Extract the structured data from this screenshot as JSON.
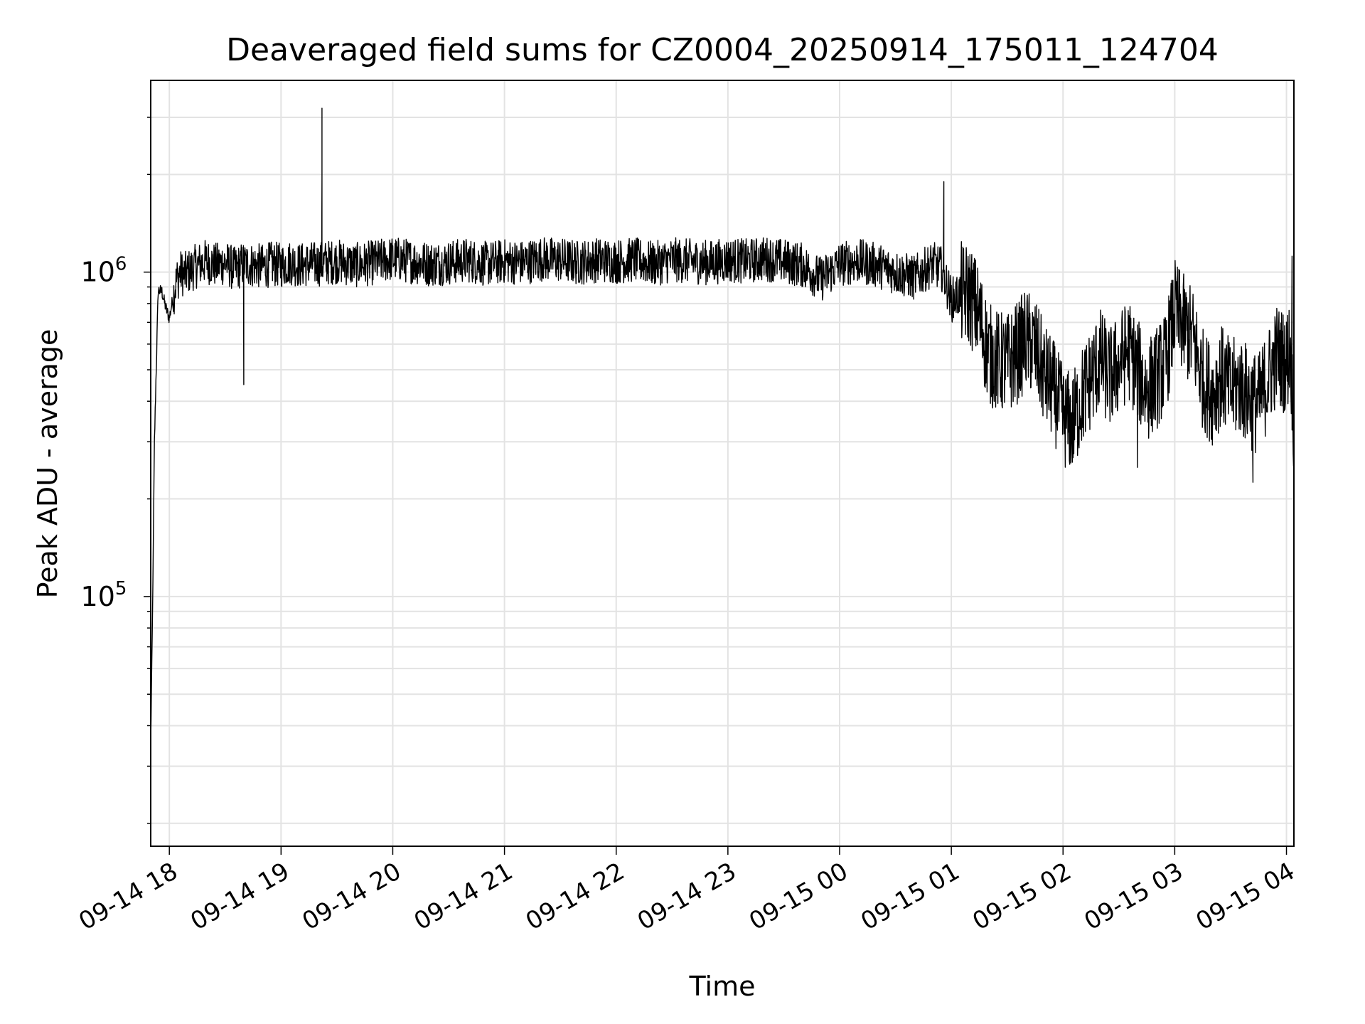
{
  "chart_data": {
    "type": "line",
    "title": "Deaveraged field sums for CZ0004_20250914_175011_124704",
    "xlabel": "Time",
    "ylabel": "Peak ADU - average",
    "yscale": "log",
    "ylim": [
      17000,
      3900000
    ],
    "xlim": [
      "2025-09-14 17:50",
      "2025-09-15 04:04"
    ],
    "grid": true,
    "x_ticks": [
      {
        "at": "2025-09-14 18:00",
        "label": "09-14 18"
      },
      {
        "at": "2025-09-14 19:00",
        "label": "09-14 19"
      },
      {
        "at": "2025-09-14 20:00",
        "label": "09-14 20"
      },
      {
        "at": "2025-09-14 21:00",
        "label": "09-14 21"
      },
      {
        "at": "2025-09-14 22:00",
        "label": "09-14 22"
      },
      {
        "at": "2025-09-14 23:00",
        "label": "09-14 23"
      },
      {
        "at": "2025-09-15 00:00",
        "label": "09-15 00"
      },
      {
        "at": "2025-09-15 01:00",
        "label": "09-15 01"
      },
      {
        "at": "2025-09-15 02:00",
        "label": "09-15 02"
      },
      {
        "at": "2025-09-15 03:00",
        "label": "09-15 03"
      },
      {
        "at": "2025-09-15 04:00",
        "label": "09-15 04"
      }
    ],
    "y_ticks": [
      {
        "value": 100000,
        "base": "10",
        "exp": "5"
      },
      {
        "value": 1000000,
        "base": "10",
        "exp": "6"
      }
    ],
    "line_color": "#000000",
    "series": [
      {
        "x": [
          "2025-09-14 17:50",
          "2025-09-14 17:51",
          "2025-09-14 17:52",
          "2025-09-14 17:54",
          "2025-09-14 17:56",
          "2025-09-14 17:58",
          "2025-09-14 18:00",
          "2025-09-14 18:02",
          "2025-09-14 18:04",
          "2025-09-14 18:06",
          "2025-09-14 18:08",
          "2025-09-14 18:10",
          "2025-09-14 18:15",
          "2025-09-14 18:20",
          "2025-09-14 18:25",
          "2025-09-14 18:30",
          "2025-09-14 18:35",
          "2025-09-14 18:40",
          "2025-09-14 18:45",
          "2025-09-14 18:50",
          "2025-09-14 18:55",
          "2025-09-14 19:00",
          "2025-09-14 19:05",
          "2025-09-14 19:10",
          "2025-09-14 19:15",
          "2025-09-14 19:20",
          "2025-09-14 19:30",
          "2025-09-14 19:40",
          "2025-09-14 19:50",
          "2025-09-14 20:00",
          "2025-09-14 20:10",
          "2025-09-14 20:20",
          "2025-09-14 20:30",
          "2025-09-14 20:40",
          "2025-09-14 20:50",
          "2025-09-14 21:00",
          "2025-09-14 21:10",
          "2025-09-14 21:20",
          "2025-09-14 21:30",
          "2025-09-14 21:40",
          "2025-09-14 21:50",
          "2025-09-14 22:00",
          "2025-09-14 22:10",
          "2025-09-14 22:20",
          "2025-09-14 22:30",
          "2025-09-14 22:40",
          "2025-09-14 22:50",
          "2025-09-14 23:00",
          "2025-09-14 23:10",
          "2025-09-14 23:20",
          "2025-09-14 23:30",
          "2025-09-14 23:40",
          "2025-09-14 23:50",
          "2025-09-15 00:00",
          "2025-09-15 00:10",
          "2025-09-15 00:20",
          "2025-09-15 00:30",
          "2025-09-15 00:40",
          "2025-09-15 00:50",
          "2025-09-15 00:55",
          "2025-09-15 01:00",
          "2025-09-15 01:05",
          "2025-09-15 01:10",
          "2025-09-15 01:15",
          "2025-09-15 01:20",
          "2025-09-15 01:25",
          "2025-09-15 01:30",
          "2025-09-15 01:35",
          "2025-09-15 01:40",
          "2025-09-15 01:45",
          "2025-09-15 01:50",
          "2025-09-15 01:55",
          "2025-09-15 02:00",
          "2025-09-15 02:05",
          "2025-09-15 02:10",
          "2025-09-15 02:15",
          "2025-09-15 02:20",
          "2025-09-15 02:25",
          "2025-09-15 02:30",
          "2025-09-15 02:35",
          "2025-09-15 02:40",
          "2025-09-15 02:45",
          "2025-09-15 02:50",
          "2025-09-15 02:55",
          "2025-09-15 03:00",
          "2025-09-15 03:05",
          "2025-09-15 03:10",
          "2025-09-15 03:15",
          "2025-09-15 03:20",
          "2025-09-15 03:25",
          "2025-09-15 03:30",
          "2025-09-15 03:35",
          "2025-09-15 03:40",
          "2025-09-15 03:45",
          "2025-09-15 03:50",
          "2025-09-15 03:55",
          "2025-09-15 04:00",
          "2025-09-15 04:02",
          "2025-09-15 04:04"
        ],
        "y": [
          35000,
          90000,
          300000,
          880000,
          870000,
          780000,
          720000,
          840000,
          950000,
          1000000,
          980000,
          1000000,
          1050000,
          1080000,
          1050000,
          1070000,
          1020000,
          1060000,
          1050000,
          1040000,
          1060000,
          1050000,
          1070000,
          1050000,
          1060000,
          1060000,
          1080000,
          1050000,
          1070000,
          1100000,
          1080000,
          1060000,
          1070000,
          1090000,
          1060000,
          1080000,
          1070000,
          1100000,
          1090000,
          1070000,
          1090000,
          1080000,
          1090000,
          1060000,
          1090000,
          1080000,
          1070000,
          1090000,
          1080000,
          1100000,
          1080000,
          1050000,
          950000,
          1060000,
          1080000,
          1050000,
          1000000,
          960000,
          1060000,
          1020000,
          820000,
          860000,
          850000,
          730000,
          560000,
          530000,
          520000,
          560000,
          620000,
          580000,
          480000,
          430000,
          360000,
          340000,
          410000,
          470000,
          540000,
          470000,
          520000,
          580000,
          500000,
          430000,
          470000,
          520000,
          760000,
          680000,
          620000,
          470000,
          420000,
          480000,
          430000,
          450000,
          410000,
          390000,
          470000,
          560000,
          520000,
          600000,
          340000
        ]
      }
    ],
    "annotations": [
      {
        "x": "2025-09-14 18:40",
        "y": 450000
      },
      {
        "x": "2025-09-14 19:22",
        "y": 3200000
      },
      {
        "x": "2025-09-14 19:22",
        "y": 1950000
      },
      {
        "x": "2025-09-15 00:56",
        "y": 1900000
      },
      {
        "x": "2025-09-15 02:40",
        "y": 250000
      },
      {
        "x": "2025-09-15 03:42",
        "y": 225000
      },
      {
        "x": "2025-09-15 04:03",
        "y": 1120000
      }
    ]
  }
}
